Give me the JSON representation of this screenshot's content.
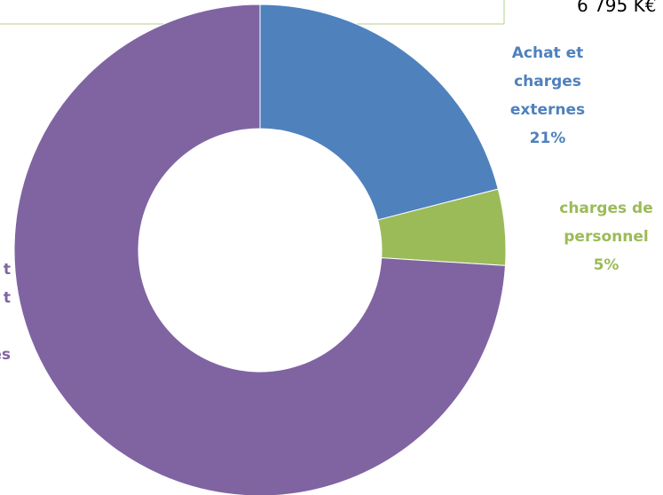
{
  "header_value": "6 795 K€",
  "chart_data": {
    "type": "donut",
    "categories": [
      "Achat et charges externes",
      "charges de personnel",
      null
    ],
    "values": [
      21,
      5,
      74
    ],
    "value_labels": [
      "21%",
      "5%",
      null
    ],
    "colors": [
      "#4f81bd",
      "#9bbb59",
      "#8064a2"
    ],
    "annotations": [
      "t",
      "t",
      "es"
    ]
  }
}
